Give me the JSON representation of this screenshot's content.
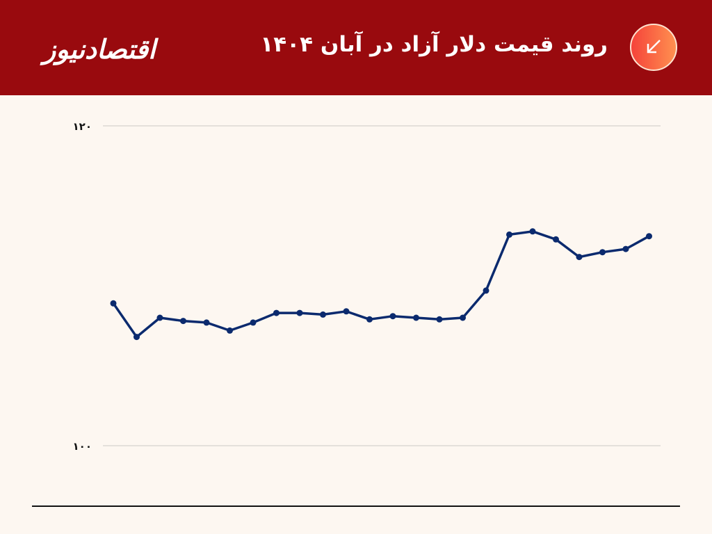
{
  "header": {
    "logo_text": "اقتصادنیوز",
    "title": "روند قیمت دلار آزاد در آبان ۱۴۰۴",
    "icon": "arrow-down-left-icon",
    "background_color": "#990a0e"
  },
  "chart_data": {
    "type": "line",
    "title": "روند قیمت دلار آزاد در آبان ۱۴۰۴",
    "xlabel": "",
    "ylabel": "",
    "ylim": [
      100,
      120
    ],
    "y_ticks": [
      100,
      120
    ],
    "y_tick_labels": [
      "۱۰۰",
      "۱۲۰"
    ],
    "grid": true,
    "markers": true,
    "line_color": "#0b2a6e",
    "x": [
      1,
      2,
      3,
      4,
      5,
      6,
      7,
      8,
      9,
      10,
      11,
      12,
      13,
      14,
      15,
      16,
      17,
      18,
      19,
      20,
      21,
      22,
      23,
      24
    ],
    "values": [
      108.9,
      106.8,
      108.0,
      107.8,
      107.7,
      107.2,
      107.7,
      108.3,
      108.3,
      108.2,
      108.4,
      107.9,
      108.1,
      108.0,
      107.9,
      108.0,
      109.7,
      113.2,
      113.4,
      112.9,
      111.8,
      112.1,
      112.3,
      113.1
    ]
  }
}
